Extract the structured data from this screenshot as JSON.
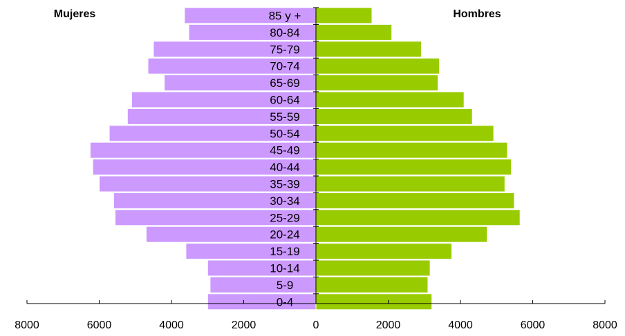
{
  "chart_data": {
    "type": "bar",
    "orientation": "horizontal-pyramid",
    "title": "",
    "categories": [
      "85 y +",
      "80-84",
      "75-79",
      "70-74",
      "65-69",
      "60-64",
      "55-59",
      "50-54",
      "45-49",
      "40-44",
      "35-39",
      "30-34",
      "25-29",
      "20-24",
      "15-19",
      "10-14",
      "5-9",
      "0-4"
    ],
    "series": [
      {
        "name": "Mujeres",
        "color": "#cc99ff",
        "values": [
          3640,
          3520,
          4500,
          4650,
          4200,
          5100,
          5220,
          5720,
          6250,
          6180,
          6000,
          5600,
          5560,
          4700,
          3600,
          3000,
          2930,
          3000
        ]
      },
      {
        "name": "Hombres",
        "color": "#99cc00",
        "values": [
          1550,
          2100,
          2920,
          3420,
          3380,
          4100,
          4330,
          4920,
          5300,
          5410,
          5230,
          5490,
          5650,
          4740,
          3760,
          3160,
          3100,
          3210
        ]
      }
    ],
    "xlim": [
      -8000,
      8000
    ],
    "xticks": [
      "8000",
      "6000",
      "4000",
      "2000",
      "0",
      "2000",
      "4000",
      "6000",
      "8000"
    ],
    "grid": false,
    "legend_placement": "top"
  }
}
